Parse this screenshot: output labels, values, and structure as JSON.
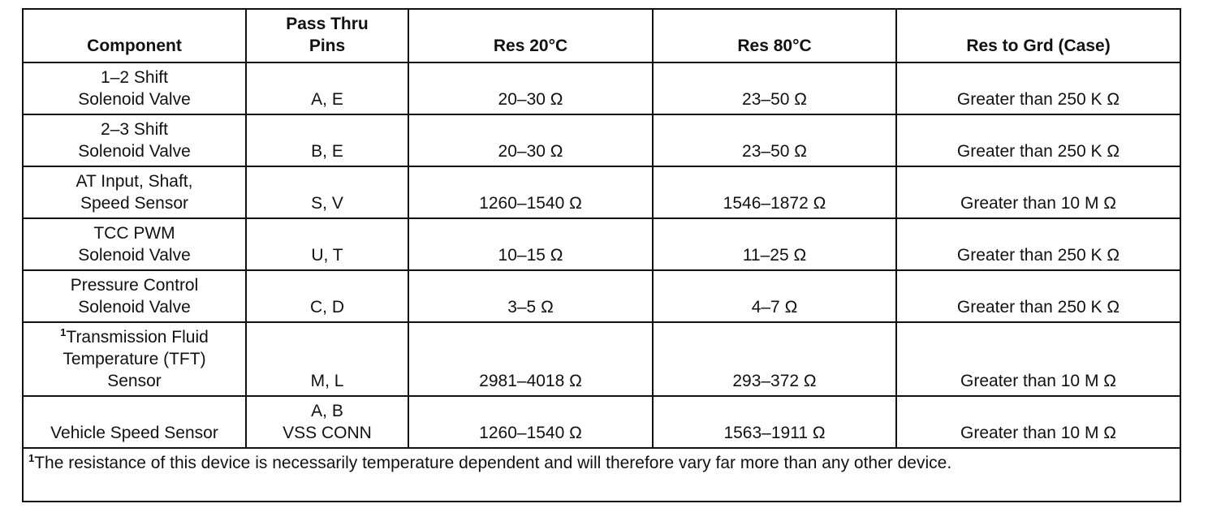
{
  "headers": {
    "component": "Component",
    "pins": "Pass Thru\nPins",
    "res20": "Res 20°C",
    "res80": "Res 80°C",
    "resgrd": "Res to Grd (Case)"
  },
  "rows": [
    {
      "component": "1–2 Shift\nSolenoid Valve",
      "pins": "A, E",
      "res20": "20–30 Ω",
      "res80": "23–50 Ω",
      "resgrd": "Greater than 250 K Ω"
    },
    {
      "component": "2–3 Shift\nSolenoid Valve",
      "pins": "B, E",
      "res20": "20–30 Ω",
      "res80": "23–50 Ω",
      "resgrd": "Greater than 250 K Ω"
    },
    {
      "component": "AT Input, Shaft,\nSpeed Sensor",
      "pins": "S, V",
      "res20": "1260–1540 Ω",
      "res80": "1546–1872 Ω",
      "resgrd": "Greater than 10 M Ω"
    },
    {
      "component": "TCC PWM\nSolenoid Valve",
      "pins": "U, T",
      "res20": "10–15 Ω",
      "res80": "11–25 Ω",
      "resgrd": "Greater than 250 K Ω"
    },
    {
      "component": "Pressure Control\nSolenoid Valve",
      "pins": "C, D",
      "res20": "3–5 Ω",
      "res80": "4–7 Ω",
      "resgrd": "Greater than 250 K Ω"
    },
    {
      "footnote_marker": "1",
      "component": "Transmission Fluid\nTemperature (TFT)\nSensor",
      "pins": "M, L",
      "res20": "2981–4018 Ω",
      "res80": "293–372 Ω",
      "resgrd": "Greater than 10 M Ω"
    },
    {
      "component": "Vehicle Speed Sensor",
      "pins": "A, B\nVSS CONN",
      "res20": "1260–1540 Ω",
      "res80": "1563–1911 Ω",
      "resgrd": "Greater than 10 M Ω"
    }
  ],
  "footnote": {
    "marker": "1",
    "text": "The resistance of this device is necessarily temperature dependent and will therefore vary far more than any other device."
  }
}
